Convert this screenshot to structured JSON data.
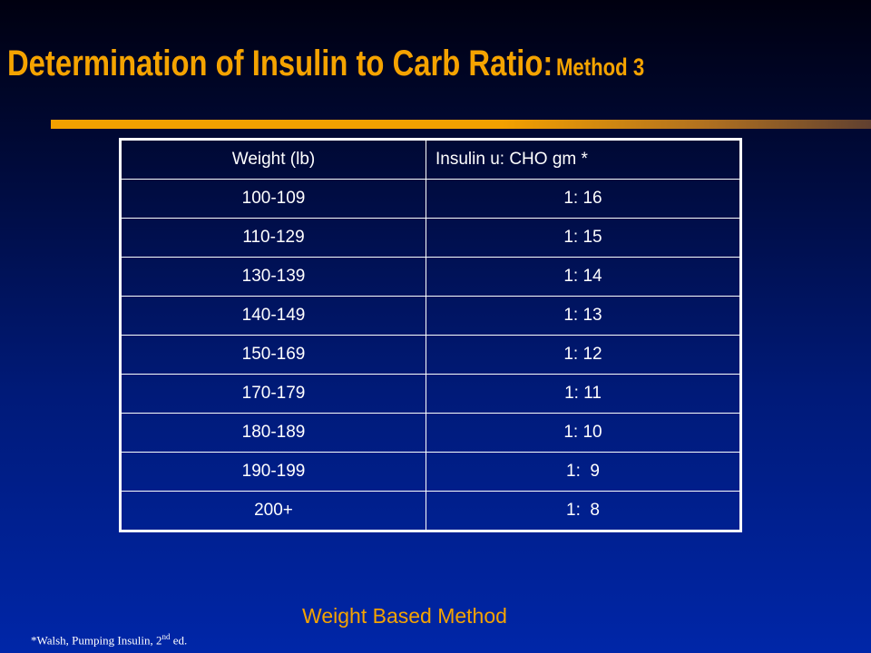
{
  "slide": {
    "title_main": "Determination of Insulin to Carb Ratio:",
    "title_sub": "Method 3",
    "method_label": "Weight Based Method",
    "footnote": {
      "text_before": "*Walsh, Pumping Insulin, 2",
      "superscript": "nd",
      "text_after": " ed."
    }
  },
  "table": {
    "headers": [
      "Weight (lb)",
      "Insulin u: CHO gm *"
    ],
    "rows": [
      [
        "100-109",
        "1: 16"
      ],
      [
        "110-129",
        "1: 15"
      ],
      [
        "130-139",
        "1: 14"
      ],
      [
        "140-149",
        "1: 13"
      ],
      [
        "150-169",
        "1: 12"
      ],
      [
        "170-179",
        "1: 11"
      ],
      [
        "180-189",
        "1: 10"
      ],
      [
        "190-199",
        "1:  9"
      ],
      [
        "200+",
        "1:  8"
      ]
    ]
  },
  "colors": {
    "title": "#f5a300",
    "table_text": "#ffffff",
    "background_bottom": "#0026a8"
  }
}
